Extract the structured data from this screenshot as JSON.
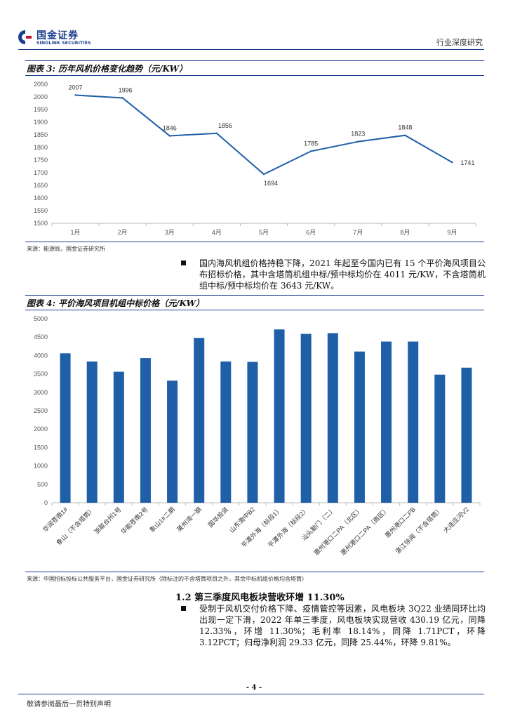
{
  "header": {
    "logo_cn": "国金证券",
    "logo_en": "SINOLINK SECURITIES",
    "right_label": "行业深度研究"
  },
  "figure3": {
    "title": "图表 3: 历年风机价格变化趋势（元/KW）",
    "source": "来源：能源局，国金证券研究所",
    "chart_data": {
      "type": "line",
      "categories": [
        "1月",
        "2月",
        "3月",
        "4月",
        "5月",
        "6月",
        "7月",
        "8月",
        "9月"
      ],
      "values": [
        2007,
        1996,
        1846,
        1856,
        1694,
        1785,
        1823,
        1848,
        1741
      ],
      "value_labels": [
        "2007",
        "1996",
        "1846",
        "1856",
        "1694",
        "1785",
        "1823",
        "1848",
        "1741"
      ],
      "yticks": [
        "1500",
        "1550",
        "1600",
        "1650",
        "1700",
        "1750",
        "1800",
        "1850",
        "1900",
        "1950",
        "2000",
        "2050"
      ],
      "ylim": [
        1500,
        2050
      ],
      "title": "",
      "xlabel": "",
      "ylabel": "",
      "grid": false,
      "color": "#1f5fa8"
    }
  },
  "bullet1": {
    "text": "国内海风机组价格持稳下降，2021 年起至今国内已有 15 个平价海风项目公布招标价格，其中含塔筒机组中标/预中标均价在 4011 元/KW，不含塔筒机组中标/预中标均价在 3643 元/KW。"
  },
  "figure4": {
    "title": "图表 4: 平价海风项目机组中标价格（元/KW）",
    "source": "来源：中国招标投标公共服务平台，国金证券研究所（除标注的不含塔筒项目之外，其余中标机组价格均含塔筒）",
    "chart_data": {
      "type": "bar",
      "categories": [
        "华润苍南1#",
        "象山（不含塔筒）",
        "浙能台州1号",
        "华能苍南2号",
        "象山1#二期",
        "莱州湾一期",
        "国华投资",
        "山东渤中B2",
        "平潭外海（标段1）",
        "平潭外海（标段2）",
        "汕头勒门（二）",
        "惠州港口二PA（北区）",
        "惠州港口二PA（南区）",
        "惠州港口二PB",
        "湛江徐闻（不含塔筒）",
        "大连庄河V2"
      ],
      "values": [
        4060,
        3840,
        3560,
        3930,
        3320,
        4480,
        3840,
        3830,
        4710,
        4590,
        4610,
        4110,
        4380,
        4380,
        3480,
        3670
      ],
      "yticks": [
        "0",
        "500",
        "1000",
        "1500",
        "2000",
        "2500",
        "3000",
        "3500",
        "4000",
        "4500",
        "5000"
      ],
      "ylim": [
        0,
        5000
      ],
      "title": "",
      "xlabel": "",
      "ylabel": "",
      "grid": false,
      "color": "#1f5fa8"
    }
  },
  "section": {
    "title": "1.2 第三季度风电板块营收环增 11.30%"
  },
  "bullet2": {
    "text": "受制于风机交付价格下降、疫情管控等因素，风电板块 3Q22 业绩同环比均出现一定下滑，2022 年单三季度，风电板块实现营收 430.19 亿元，同降 12.33%，环增 11.30%；毛利率 18.14%，同降 1.71PCT，环降 3.12PCT；归母净利润 29.33 亿元，同降 25.44%，环降 9.81%。"
  },
  "footer": {
    "page_number": "- 4 -",
    "note": "敬请参阅最后一页特别声明"
  }
}
